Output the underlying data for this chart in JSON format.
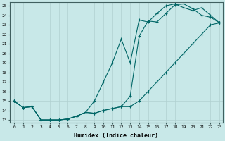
{
  "xlabel": "Humidex (Indice chaleur)",
  "bg_color": "#c8e8e8",
  "line_color": "#006666",
  "grid_color": "#b0d0d0",
  "line1_x": [
    0,
    1,
    2,
    3,
    4,
    5,
    6,
    7,
    8,
    9,
    10,
    11,
    12,
    13,
    14,
    15,
    16,
    17,
    18,
    19,
    20,
    21,
    22,
    23
  ],
  "line1_y": [
    15.0,
    14.3,
    14.4,
    13.0,
    13.0,
    13.0,
    13.1,
    13.4,
    13.8,
    13.7,
    14.0,
    14.2,
    14.4,
    14.4,
    15.0,
    16.0,
    17.0,
    18.0,
    19.0,
    20.0,
    21.0,
    22.0,
    23.0,
    23.2
  ],
  "line2_x": [
    0,
    1,
    2,
    3,
    4,
    5,
    6,
    7,
    8,
    9,
    10,
    11,
    12,
    13,
    14,
    15,
    16,
    17,
    18,
    19,
    20,
    21,
    22,
    23
  ],
  "line2_y": [
    15.0,
    14.3,
    14.4,
    13.0,
    13.0,
    13.0,
    13.1,
    13.4,
    13.8,
    15.0,
    17.0,
    19.0,
    21.5,
    19.0,
    23.5,
    23.3,
    24.2,
    25.0,
    25.2,
    24.8,
    24.5,
    24.8,
    24.0,
    23.2
  ],
  "line3_x": [
    0,
    1,
    2,
    3,
    4,
    5,
    6,
    7,
    8,
    9,
    10,
    11,
    12,
    13,
    14,
    15,
    16,
    17,
    18,
    19,
    20,
    21,
    22,
    23
  ],
  "line3_y": [
    15.0,
    14.3,
    14.4,
    13.0,
    13.0,
    13.0,
    13.1,
    13.4,
    13.8,
    13.7,
    14.0,
    14.2,
    14.4,
    15.5,
    21.8,
    23.4,
    23.3,
    24.2,
    25.1,
    25.2,
    24.7,
    24.0,
    23.8,
    23.2
  ],
  "yticks": [
    13,
    14,
    15,
    16,
    17,
    18,
    19,
    20,
    21,
    22,
    23,
    24,
    25
  ],
  "xticks": [
    0,
    1,
    2,
    3,
    4,
    5,
    6,
    7,
    8,
    9,
    10,
    11,
    12,
    13,
    14,
    15,
    16,
    17,
    18,
    19,
    20,
    21,
    22,
    23
  ],
  "xlim": [
    -0.5,
    23.4
  ],
  "ylim": [
    12.7,
    25.4
  ]
}
